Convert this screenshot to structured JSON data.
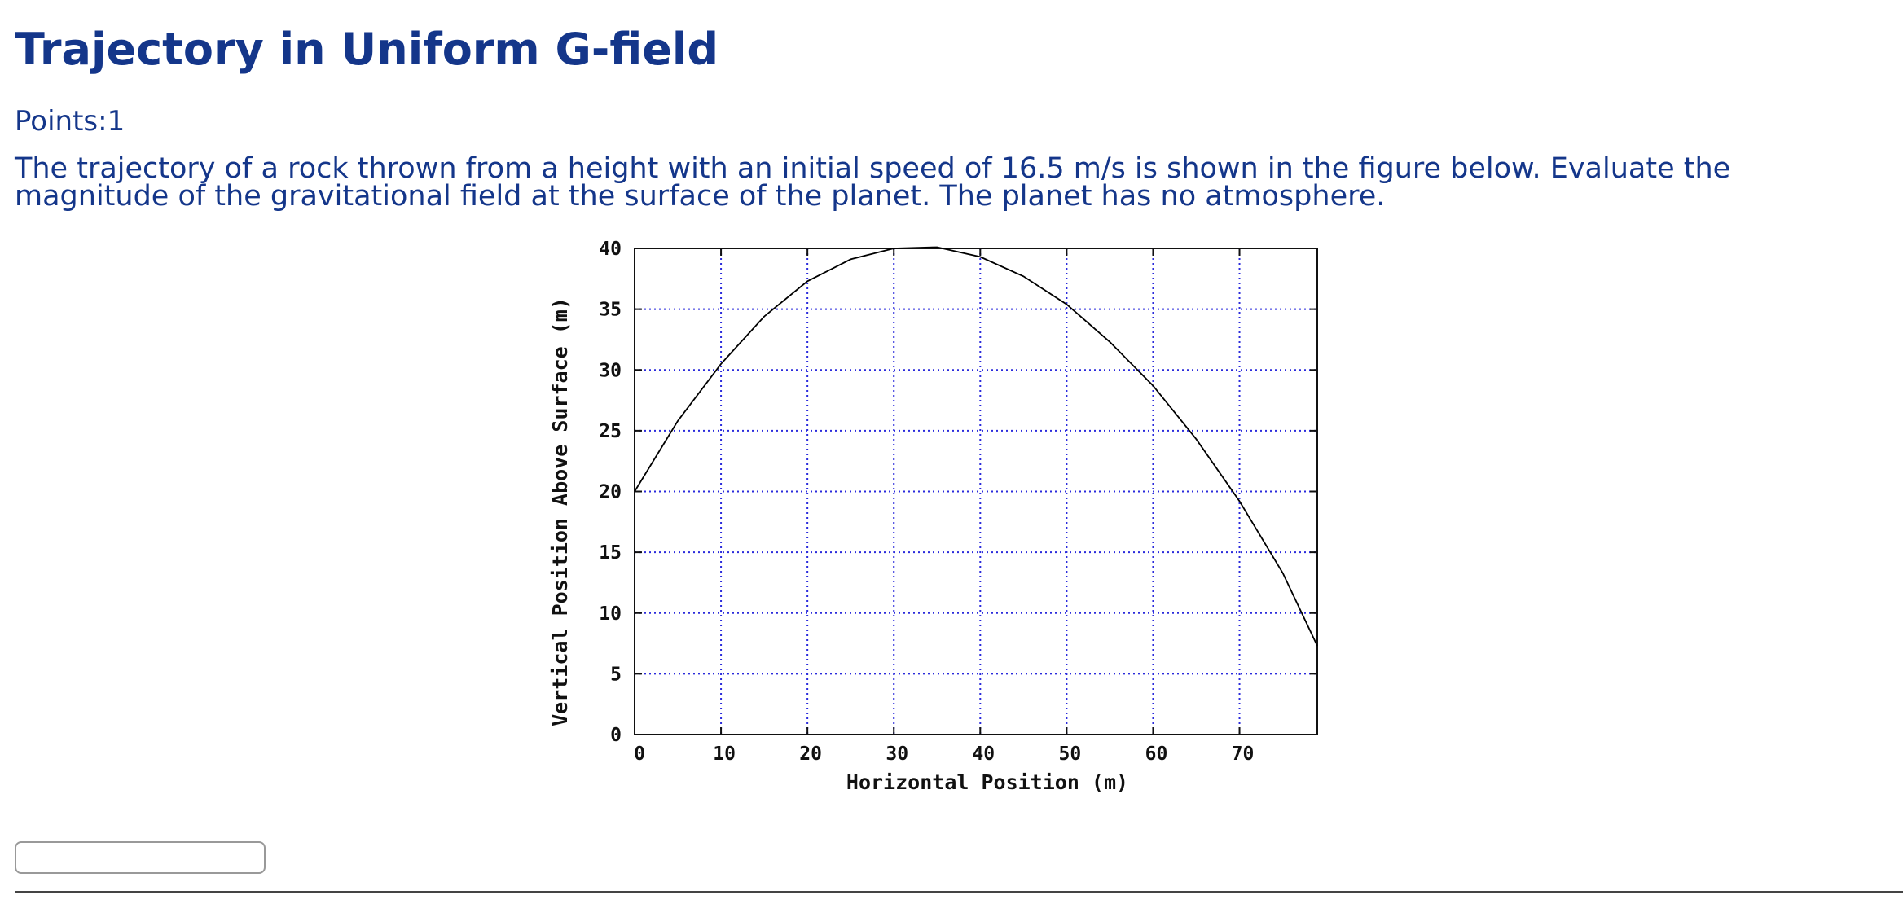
{
  "page": {
    "title": "Trajectory in Uniform G-field",
    "points_label": "Points:1",
    "question": "The trajectory of a rock thrown from a height with an initial speed of 16.5 m/s is shown in the figure below. Evaluate the magnitude of the gravitational field at the surface of the planet. The planet has no atmosphere.",
    "answer_value": ""
  },
  "colors": {
    "text": "#14368a",
    "grid": "#2b2bdc",
    "curve": "#000000"
  },
  "chart_data": {
    "type": "line",
    "title": "",
    "xlabel": "Horizontal Position (m)",
    "ylabel": "Vertical Position Above Surface (m)",
    "xlim": [
      0,
      79
    ],
    "ylim": [
      0,
      40
    ],
    "xticks": [
      0,
      10,
      20,
      30,
      40,
      50,
      60,
      70
    ],
    "yticks": [
      0,
      5,
      10,
      15,
      20,
      25,
      30,
      35,
      40
    ],
    "grid": true,
    "grid_style": "dotted",
    "series": [
      {
        "x": [
          0,
          5,
          10,
          15,
          20,
          25,
          30,
          35,
          40,
          45,
          50,
          55,
          60,
          65,
          70,
          75,
          79
        ],
        "y": [
          20,
          25.8,
          30.5,
          34.4,
          37.3,
          39.1,
          40.0,
          40.1,
          39.3,
          37.7,
          35.4,
          32.3,
          28.7,
          24.3,
          19.2,
          13.3,
          7.3
        ]
      }
    ]
  }
}
